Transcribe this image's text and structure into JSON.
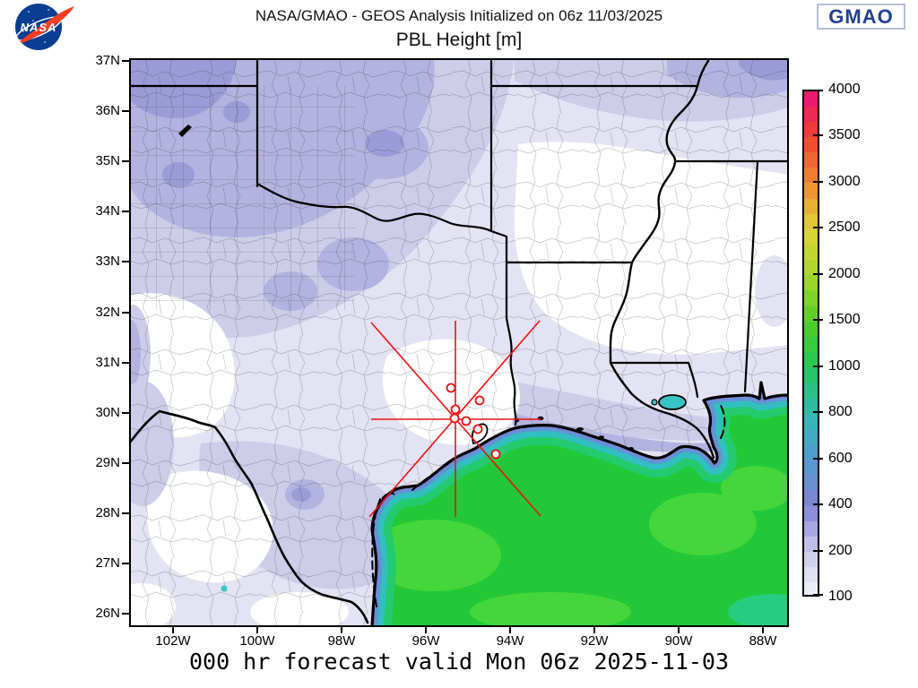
{
  "header": {
    "title": "NASA/GMAO - GEOS Analysis Initialized on 06z 11/03/2025",
    "subtitle": "PBL Height [m]"
  },
  "logos": {
    "nasa_text": "NASA",
    "gmao_text": "GMAO"
  },
  "axes": {
    "lat_ticks": [
      "37N",
      "36N",
      "35N",
      "34N",
      "33N",
      "32N",
      "31N",
      "30N",
      "29N",
      "28N",
      "27N",
      "26N"
    ],
    "lon_ticks": [
      "102W",
      "100W",
      "98W",
      "96W",
      "94W",
      "92W",
      "90W",
      "88W"
    ]
  },
  "colorbar": {
    "unit": "m",
    "stops": [
      {
        "label": "4000",
        "color": "#e6157e"
      },
      {
        "label": "3500",
        "color": "#f0432e"
      },
      {
        "label": "3000",
        "color": "#ef8a31"
      },
      {
        "label": "2500",
        "color": "#e0d434"
      },
      {
        "label": "2000",
        "color": "#a8d72c"
      },
      {
        "label": "1500",
        "color": "#53ce25"
      },
      {
        "label": "1000",
        "color": "#23c75b"
      },
      {
        "label": "800",
        "color": "#2fbab0"
      },
      {
        "label": "600",
        "color": "#539bd2"
      },
      {
        "label": "400",
        "color": "#8184d6"
      },
      {
        "label": "200",
        "color": "#c9cbe9"
      },
      {
        "label": "100",
        "color": "#f4f4fb"
      }
    ]
  },
  "map_colors": {
    "gulf_green": "#22c837",
    "gulf_light_green": "#45d63b",
    "coast_teal": "#32bfc0",
    "coast_blue": "#5e97d4",
    "coast_purple": "#7f81d6",
    "land_l1": "#e3e3f3",
    "land_l2": "#cdcdea",
    "land_l3": "#b3b3e0",
    "land_l4": "#9b9bd7",
    "annotation_red": "#ee1111",
    "nasa_blue": "#0b3d91",
    "nasa_red": "#fc3d21",
    "gmao_navy": "#233f92"
  },
  "footer": {
    "caption": "000 hr forecast valid Mon 06z 2025-11-03"
  }
}
